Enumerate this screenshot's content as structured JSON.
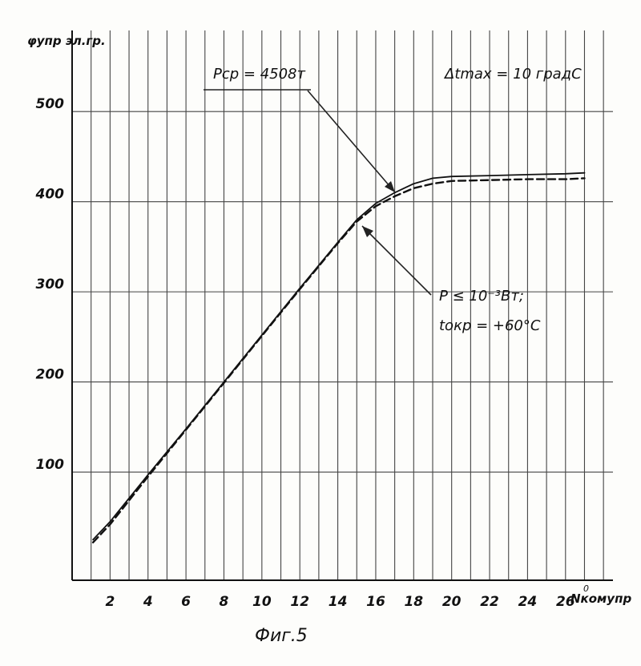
{
  "chart_data": {
    "type": "line",
    "title": "",
    "caption": "Фиг.5",
    "ylabel": "φупр эл.гр.",
    "xlabel": "Nкомупр",
    "xlabel_superscript": "0",
    "xlim": [
      0,
      28.5
    ],
    "ylim": [
      -20,
      590
    ],
    "x_ticks": [
      "2",
      "4",
      "6",
      "8",
      "10",
      "12",
      "14",
      "16",
      "18",
      "20",
      "22",
      "24",
      "26"
    ],
    "y_ticks": [
      "100",
      "200",
      "300",
      "400",
      "500"
    ],
    "grid": true,
    "annotations": [
      {
        "id": "p-avg",
        "text": "Pср = 4508т"
      },
      {
        "id": "dt-max",
        "text": "Δtmax = 10 градС"
      },
      {
        "id": "p-low",
        "text": "P ≤ 10⁻³Вт;"
      },
      {
        "id": "t-amb",
        "text": "tокр = +60°C"
      }
    ],
    "series": [
      {
        "style": "solid",
        "x": [
          1.1,
          2,
          4,
          6,
          8,
          10,
          12,
          14,
          15,
          16,
          17,
          18,
          19,
          20,
          22,
          24,
          26,
          27
        ],
        "y": [
          25,
          45,
          97,
          148,
          200,
          252,
          304,
          355,
          380,
          398,
          410,
          420,
          426,
          428,
          429,
          430,
          431,
          432
        ]
      },
      {
        "style": "dashed",
        "x": [
          1.1,
          2,
          4,
          6,
          8,
          10,
          12,
          14,
          15,
          16,
          17,
          18,
          19,
          20,
          22,
          24,
          26,
          27
        ],
        "y": [
          22,
          42,
          95,
          147,
          199,
          251,
          303,
          354,
          378,
          395,
          406,
          415,
          420,
          423,
          424,
          425,
          425,
          426
        ]
      }
    ]
  }
}
